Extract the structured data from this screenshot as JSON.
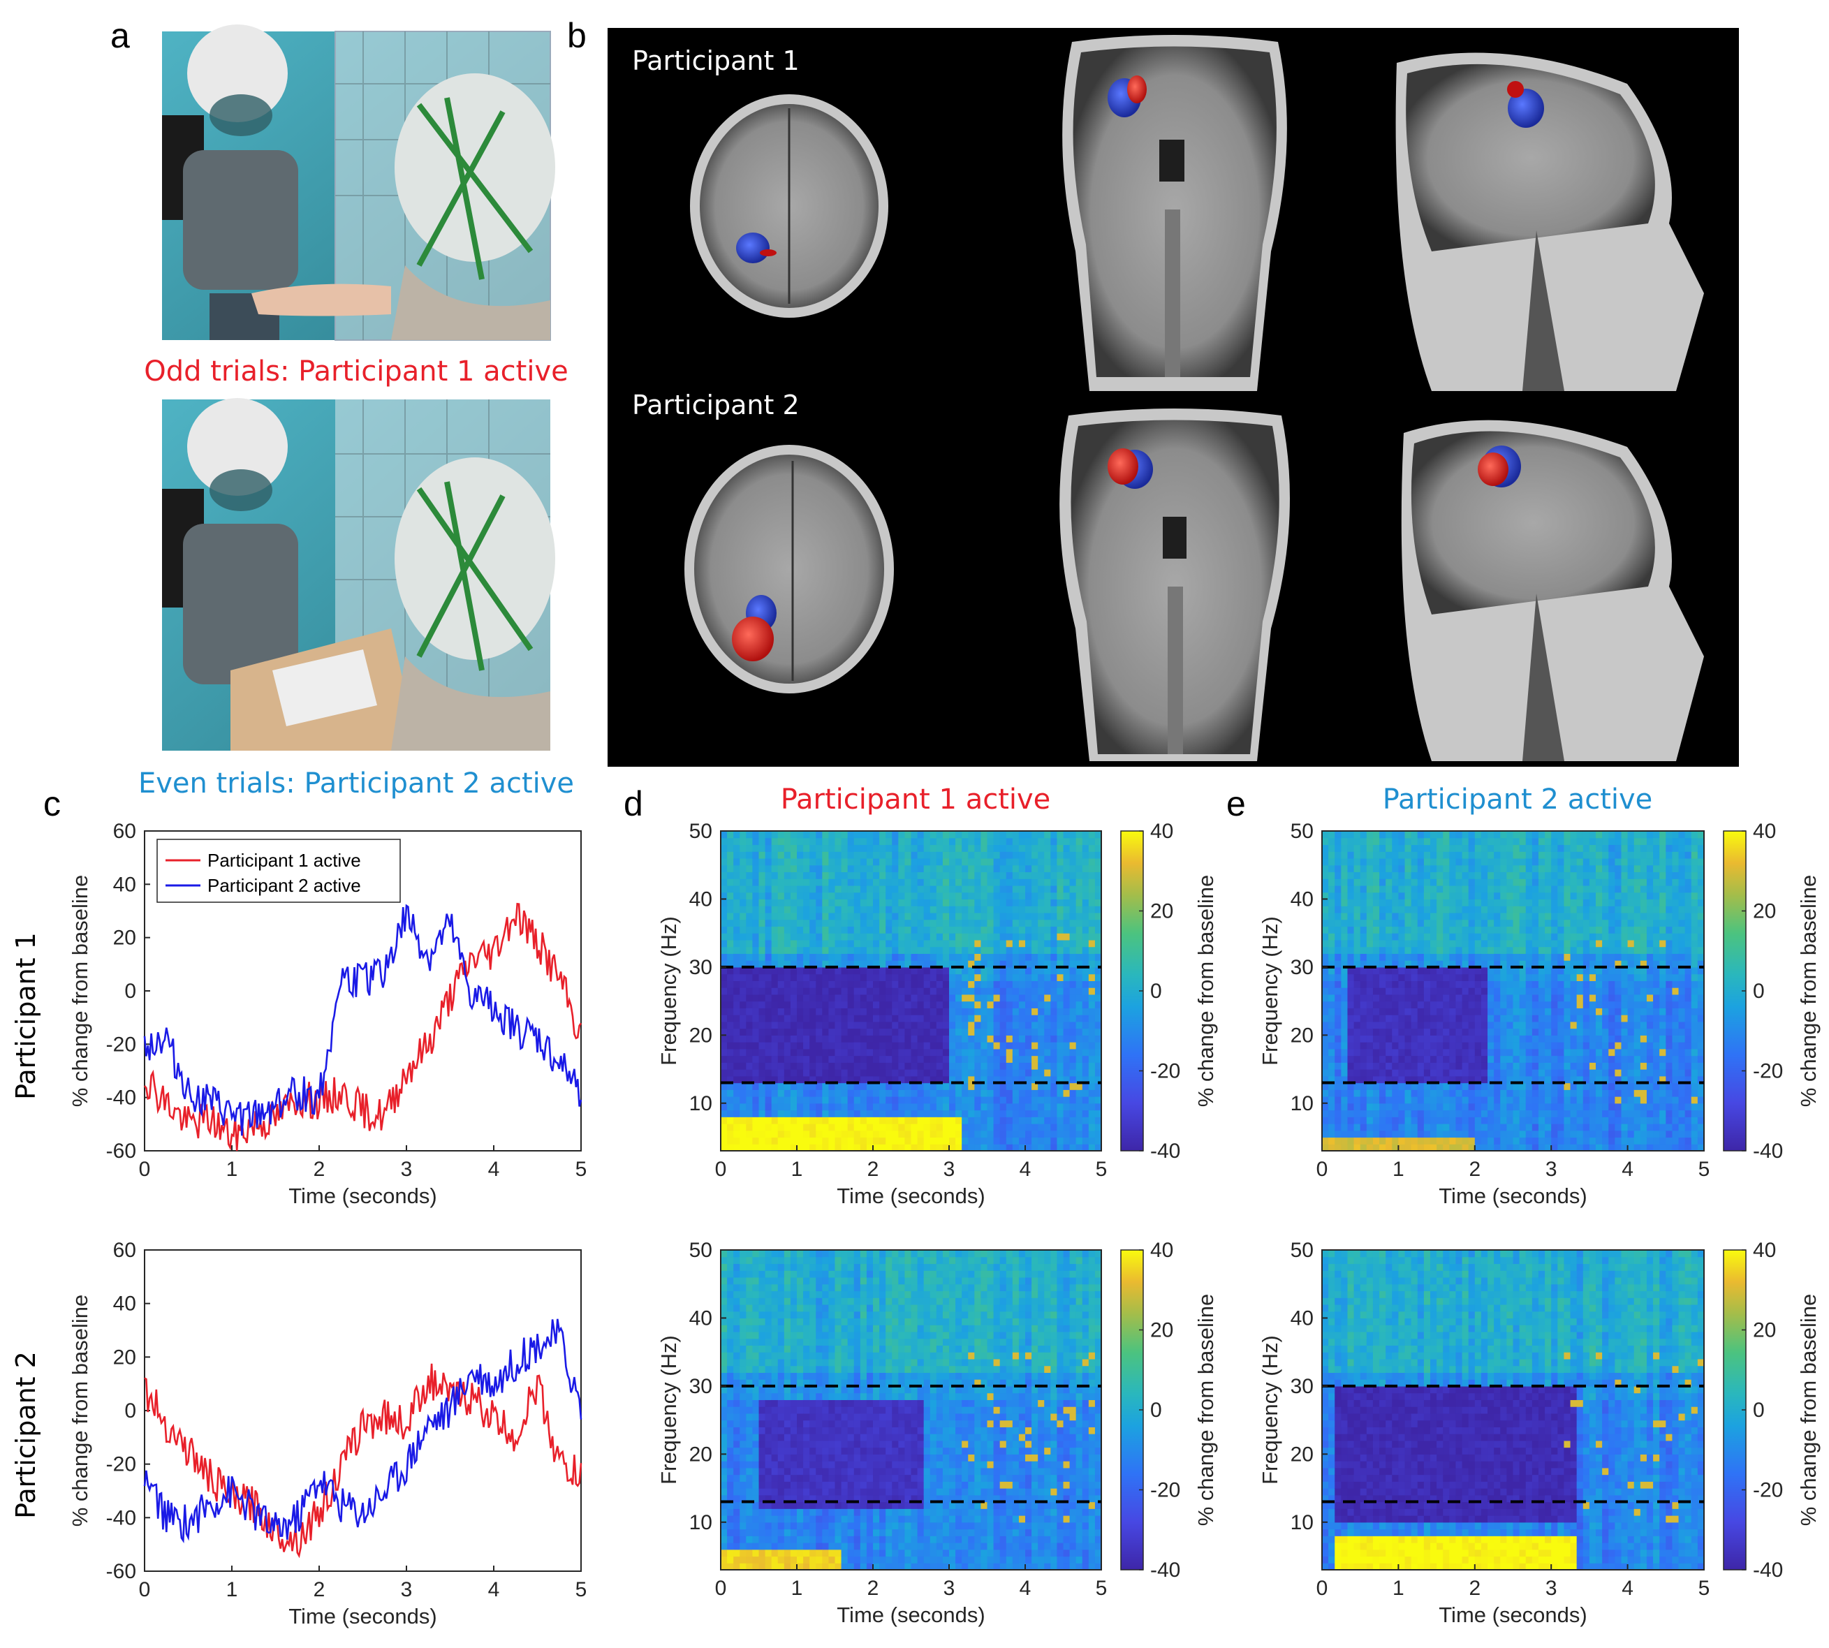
{
  "panel_labels": {
    "a": "a",
    "b": "b",
    "c": "c",
    "d": "d",
    "e": "e"
  },
  "panel_a": {
    "caption_odd": "Odd trials: Participant 1 active",
    "caption_even": "Even trials: Participant 2 active",
    "caption_odd_color": "#e8202a",
    "caption_even_color": "#1f8fd0"
  },
  "panel_b": {
    "row1_label": "Participant 1",
    "row2_label": "Participant 2",
    "colors": {
      "red_blob": "#d0201e",
      "blue_blob": "#2a3fbf",
      "background": "#000000"
    }
  },
  "panel_c": {
    "row_labels": [
      "Participant 1",
      "Participant 2"
    ],
    "legend": [
      "Participant 1 active",
      "Participant 2 active"
    ]
  },
  "panel_d": {
    "title": "Participant 1 active",
    "title_color": "#e8202a"
  },
  "panel_e": {
    "title": "Participant 2 active",
    "title_color": "#1f8fd0"
  },
  "chart_data": [
    {
      "id": "c_top",
      "type": "line",
      "xlabel": "Time (seconds)",
      "ylabel": "% change from baseline",
      "xlim": [
        0,
        5
      ],
      "ylim": [
        -60,
        60
      ],
      "xticks": [
        0,
        1,
        2,
        3,
        4,
        5
      ],
      "yticks": [
        -60,
        -40,
        -20,
        0,
        20,
        40,
        60
      ],
      "x": [
        0,
        0.25,
        0.5,
        0.75,
        1,
        1.25,
        1.5,
        1.75,
        2,
        2.25,
        2.5,
        2.75,
        3,
        3.25,
        3.5,
        3.75,
        4,
        4.25,
        4.5,
        4.75,
        5
      ],
      "series": [
        {
          "name": "Participant 1 active",
          "color": "#e8202a",
          "values": [
            -32,
            -42,
            -50,
            -48,
            -55,
            -50,
            -48,
            -40,
            -42,
            -38,
            -45,
            -47,
            -30,
            -20,
            -2,
            12,
            15,
            30,
            18,
            5,
            -18
          ]
        },
        {
          "name": "Participant 2 active",
          "color": "#1a1ae6",
          "values": [
            -20,
            -18,
            -38,
            -42,
            -47,
            -48,
            -42,
            -38,
            -40,
            5,
            3,
            8,
            28,
            12,
            24,
            -3,
            -5,
            -15,
            -18,
            -28,
            -38
          ]
        }
      ],
      "legend_position": "top-left"
    },
    {
      "id": "c_bottom",
      "type": "line",
      "xlabel": "Time (seconds)",
      "ylabel": "% change from baseline",
      "xlim": [
        0,
        5
      ],
      "ylim": [
        -60,
        60
      ],
      "xticks": [
        0,
        1,
        2,
        3,
        4,
        5
      ],
      "yticks": [
        -60,
        -40,
        -20,
        0,
        20,
        40,
        60
      ],
      "x": [
        0,
        0.25,
        0.5,
        0.75,
        1,
        1.25,
        1.5,
        1.75,
        2,
        2.25,
        2.5,
        2.75,
        3,
        3.25,
        3.5,
        3.75,
        4,
        4.25,
        4.5,
        4.75,
        5
      ],
      "series": [
        {
          "name": "Participant 1 active",
          "color": "#e8202a",
          "values": [
            8,
            -5,
            -15,
            -25,
            -33,
            -35,
            -45,
            -48,
            -38,
            -22,
            -5,
            -2,
            -5,
            12,
            5,
            5,
            -3,
            -10,
            10,
            -20,
            -25
          ]
        },
        {
          "name": "Participant 2 active",
          "color": "#1a1ae6",
          "values": [
            -25,
            -40,
            -42,
            -35,
            -30,
            -38,
            -45,
            -40,
            -25,
            -35,
            -38,
            -30,
            -20,
            -5,
            0,
            15,
            10,
            18,
            25,
            28,
            0
          ]
        }
      ]
    },
    {
      "id": "d_top",
      "type": "heatmap",
      "xlabel": "Time (seconds)",
      "ylabel": "Frequency (Hz)",
      "xlim": [
        0,
        5
      ],
      "ylim": [
        3,
        50
      ],
      "xticks": [
        0,
        1,
        2,
        3,
        4,
        5
      ],
      "yticks": [
        10,
        20,
        30,
        40,
        50
      ],
      "colorbar": {
        "label": "% change from baseline",
        "ticks": [
          40,
          20,
          0,
          -20,
          -40
        ],
        "range": [
          -40,
          40
        ]
      },
      "dashed_lines_hz": [
        13,
        30
      ],
      "regions": [
        {
          "desc": "beta desynchronisation",
          "t": [
            0,
            3
          ],
          "f": [
            13,
            30
          ],
          "value": -38
        },
        {
          "desc": "low-frequency increase",
          "t": [
            0,
            3.2
          ],
          "f": [
            3,
            8
          ],
          "value": 40
        }
      ]
    },
    {
      "id": "d_bottom",
      "type": "heatmap",
      "xlabel": "Time (seconds)",
      "ylabel": "Frequency (Hz)",
      "xlim": [
        0,
        5
      ],
      "ylim": [
        3,
        50
      ],
      "xticks": [
        0,
        1,
        2,
        3,
        4,
        5
      ],
      "yticks": [
        10,
        20,
        30,
        40,
        50
      ],
      "colorbar": {
        "label": "% change from baseline",
        "ticks": [
          40,
          20,
          0,
          -20,
          -40
        ],
        "range": [
          -40,
          40
        ]
      },
      "dashed_lines_hz": [
        13,
        30
      ],
      "regions": [
        {
          "desc": "beta desynchronisation",
          "t": [
            0.5,
            2.7
          ],
          "f": [
            12,
            28
          ],
          "value": -35
        },
        {
          "desc": "low-frequency increase",
          "t": [
            0,
            1.6
          ],
          "f": [
            3,
            6
          ],
          "value": 35
        }
      ]
    },
    {
      "id": "e_top",
      "type": "heatmap",
      "xlabel": "Time (seconds)",
      "ylabel": "Frequency (Hz)",
      "xlim": [
        0,
        5
      ],
      "ylim": [
        3,
        50
      ],
      "xticks": [
        0,
        1,
        2,
        3,
        4,
        5
      ],
      "yticks": [
        10,
        20,
        30,
        40,
        50
      ],
      "colorbar": {
        "label": "% change from baseline",
        "ticks": [
          40,
          20,
          0,
          -20,
          -40
        ],
        "range": [
          -40,
          40
        ]
      },
      "dashed_lines_hz": [
        13,
        30
      ],
      "regions": [
        {
          "desc": "beta desynchronisation",
          "t": [
            0.3,
            2.2
          ],
          "f": [
            13,
            30
          ],
          "value": -36
        },
        {
          "desc": "low-frequency increase",
          "t": [
            0,
            2
          ],
          "f": [
            3,
            5
          ],
          "value": 30
        }
      ]
    },
    {
      "id": "e_bottom",
      "type": "heatmap",
      "xlabel": "Time (seconds)",
      "ylabel": "Frequency (Hz)",
      "xlim": [
        0,
        5
      ],
      "ylim": [
        3,
        50
      ],
      "xticks": [
        0,
        1,
        2,
        3,
        4,
        5
      ],
      "yticks": [
        10,
        20,
        30,
        40,
        50
      ],
      "colorbar": {
        "label": "% change from baseline",
        "ticks": [
          40,
          20,
          0,
          -20,
          -40
        ],
        "range": [
          -40,
          40
        ]
      },
      "dashed_lines_hz": [
        13,
        30
      ],
      "regions": [
        {
          "desc": "beta desynchronisation",
          "t": [
            0.2,
            3.3
          ],
          "f": [
            10,
            30
          ],
          "value": -38
        },
        {
          "desc": "low-frequency increase",
          "t": [
            0.2,
            3.3
          ],
          "f": [
            3,
            8
          ],
          "value": 40
        }
      ]
    }
  ]
}
